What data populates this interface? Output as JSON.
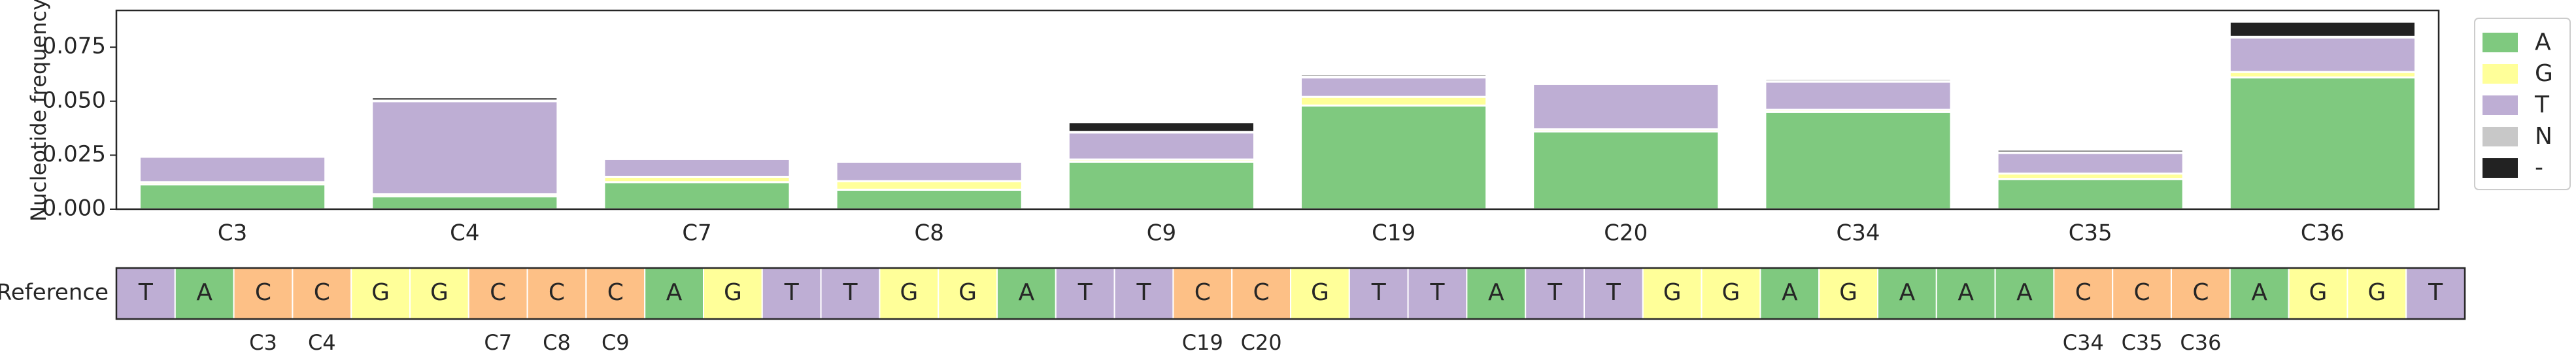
{
  "chart_data": {
    "type": "bar",
    "stacked": true,
    "ylabel": "Nucleotide frequency",
    "xlabel": "",
    "ylim": [
      0,
      0.092
    ],
    "yticks": [
      "0.000",
      "0.025",
      "0.050",
      "0.075"
    ],
    "categories": [
      "C3",
      "C4",
      "C7",
      "C8",
      "C9",
      "C19",
      "C20",
      "C34",
      "C35",
      "C36"
    ],
    "series": [
      {
        "name": "A",
        "color": "#7fc97f",
        "values": [
          0.0115,
          0.006,
          0.0125,
          0.009,
          0.022,
          0.048,
          0.036,
          0.045,
          0.014,
          0.061
        ]
      },
      {
        "name": "G",
        "color": "#ffff99",
        "values": [
          0.001,
          0.001,
          0.0025,
          0.004,
          0.001,
          0.004,
          0.001,
          0.001,
          0.0025,
          0.0025
        ]
      },
      {
        "name": "T",
        "color": "#beaed4",
        "values": [
          0.0118,
          0.043,
          0.0082,
          0.009,
          0.0125,
          0.009,
          0.021,
          0.013,
          0.0095,
          0.016
        ]
      },
      {
        "name": "N",
        "color": "#c8c8c8",
        "values": [
          0.0005,
          0.0003,
          0.0003,
          0.0003,
          0.0003,
          0.0003,
          0.0003,
          0.0003,
          0.0003,
          0.0003
        ]
      },
      {
        "name": "-",
        "color": "#222222",
        "values": [
          0.0002,
          0.0015,
          0.0005,
          0.0005,
          0.0045,
          0.001,
          0.0007,
          0.001,
          0.0012,
          0.007
        ]
      }
    ],
    "legend": {
      "position": "right",
      "entries": [
        "A",
        "G",
        "T",
        "N",
        "-"
      ]
    },
    "grid": false
  },
  "reference_track": {
    "label": "Reference",
    "sequence": [
      "T",
      "A",
      "C",
      "C",
      "G",
      "G",
      "C",
      "C",
      "C",
      "A",
      "G",
      "T",
      "T",
      "G",
      "G",
      "A",
      "T",
      "T",
      "C",
      "C",
      "G",
      "T",
      "T",
      "A",
      "T",
      "T",
      "G",
      "G",
      "A",
      "G",
      "A",
      "A",
      "A",
      "C",
      "C",
      "C",
      "A",
      "G",
      "G",
      "T"
    ],
    "base_colors": {
      "A": "#7fc97f",
      "G": "#ffff99",
      "T": "#beaed4",
      "C": "#fdc086"
    },
    "marked_positions": [
      {
        "index": 2,
        "label": "C3"
      },
      {
        "index": 3,
        "label": "C4"
      },
      {
        "index": 6,
        "label": "C7"
      },
      {
        "index": 7,
        "label": "C8"
      },
      {
        "index": 8,
        "label": "C9"
      },
      {
        "index": 18,
        "label": "C19"
      },
      {
        "index": 19,
        "label": "C20"
      },
      {
        "index": 33,
        "label": "C34"
      },
      {
        "index": 34,
        "label": "C35"
      },
      {
        "index": 35,
        "label": "C36"
      }
    ]
  }
}
